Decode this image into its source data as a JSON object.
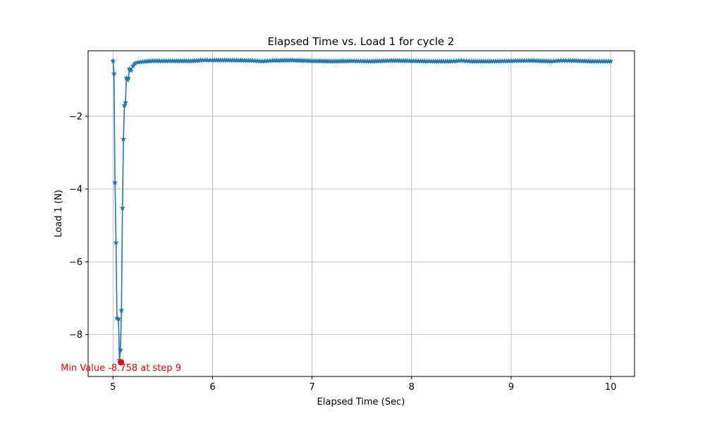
{
  "chart_data": {
    "type": "line",
    "title": "Elapsed Time vs. Load 1 for cycle 2",
    "xlabel": "Elapsed Time (Sec)",
    "ylabel": "Load 1 (N)",
    "xlim": [
      4.75,
      10.24
    ],
    "ylim": [
      -9.15,
      -0.2
    ],
    "x_ticks": [
      5,
      6,
      7,
      8,
      9,
      10
    ],
    "y_ticks": [
      -8,
      -6,
      -4,
      -2
    ],
    "x_tick_labels": [
      "5",
      "6",
      "7",
      "8",
      "9",
      "10"
    ],
    "y_tick_labels": [
      "−8",
      "−6",
      "−4",
      "−2"
    ],
    "grid": true,
    "marker": "star",
    "series": [
      {
        "color": "#1f77b4",
        "points": [
          [
            5.0,
            -0.48
          ],
          [
            5.01,
            -0.83
          ],
          [
            5.02,
            -3.82
          ],
          [
            5.03,
            -5.47
          ],
          [
            5.04,
            -7.55
          ],
          [
            5.055,
            -7.57
          ],
          [
            5.065,
            -8.7
          ],
          [
            5.075,
            -8.42
          ],
          [
            5.085,
            -7.33
          ],
          [
            5.095,
            -4.52
          ],
          [
            5.105,
            -2.63
          ],
          [
            5.115,
            -1.7
          ],
          [
            5.125,
            -1.62
          ],
          [
            5.135,
            -0.95
          ],
          [
            5.145,
            -1.0
          ],
          [
            5.155,
            -0.95
          ],
          [
            5.165,
            -0.7
          ],
          [
            5.18,
            -0.74
          ],
          [
            5.2,
            -0.62
          ],
          [
            5.22,
            -0.55
          ],
          [
            5.25,
            -0.52
          ],
          [
            5.3,
            -0.5
          ],
          [
            5.4,
            -0.48
          ],
          [
            5.6,
            -0.48
          ],
          [
            5.8,
            -0.48
          ],
          [
            5.9,
            -0.46
          ],
          [
            6.0,
            -0.46
          ],
          [
            6.2,
            -0.46
          ],
          [
            6.4,
            -0.47
          ],
          [
            6.5,
            -0.49
          ],
          [
            6.6,
            -0.47
          ],
          [
            6.8,
            -0.46
          ],
          [
            7.0,
            -0.48
          ],
          [
            7.2,
            -0.49
          ],
          [
            7.4,
            -0.48
          ],
          [
            7.6,
            -0.49
          ],
          [
            7.8,
            -0.47
          ],
          [
            8.0,
            -0.48
          ],
          [
            8.2,
            -0.49
          ],
          [
            8.4,
            -0.49
          ],
          [
            8.5,
            -0.47
          ],
          [
            8.6,
            -0.49
          ],
          [
            8.8,
            -0.49
          ],
          [
            9.0,
            -0.48
          ],
          [
            9.2,
            -0.47
          ],
          [
            9.4,
            -0.49
          ],
          [
            9.5,
            -0.47
          ],
          [
            9.6,
            -0.47
          ],
          [
            9.8,
            -0.49
          ],
          [
            10.0,
            -0.49
          ]
        ]
      }
    ],
    "annotation": {
      "text": "Min Value -8.758 at step 9",
      "x": 5.08,
      "y": -8.758,
      "color": "#ff0000"
    }
  }
}
